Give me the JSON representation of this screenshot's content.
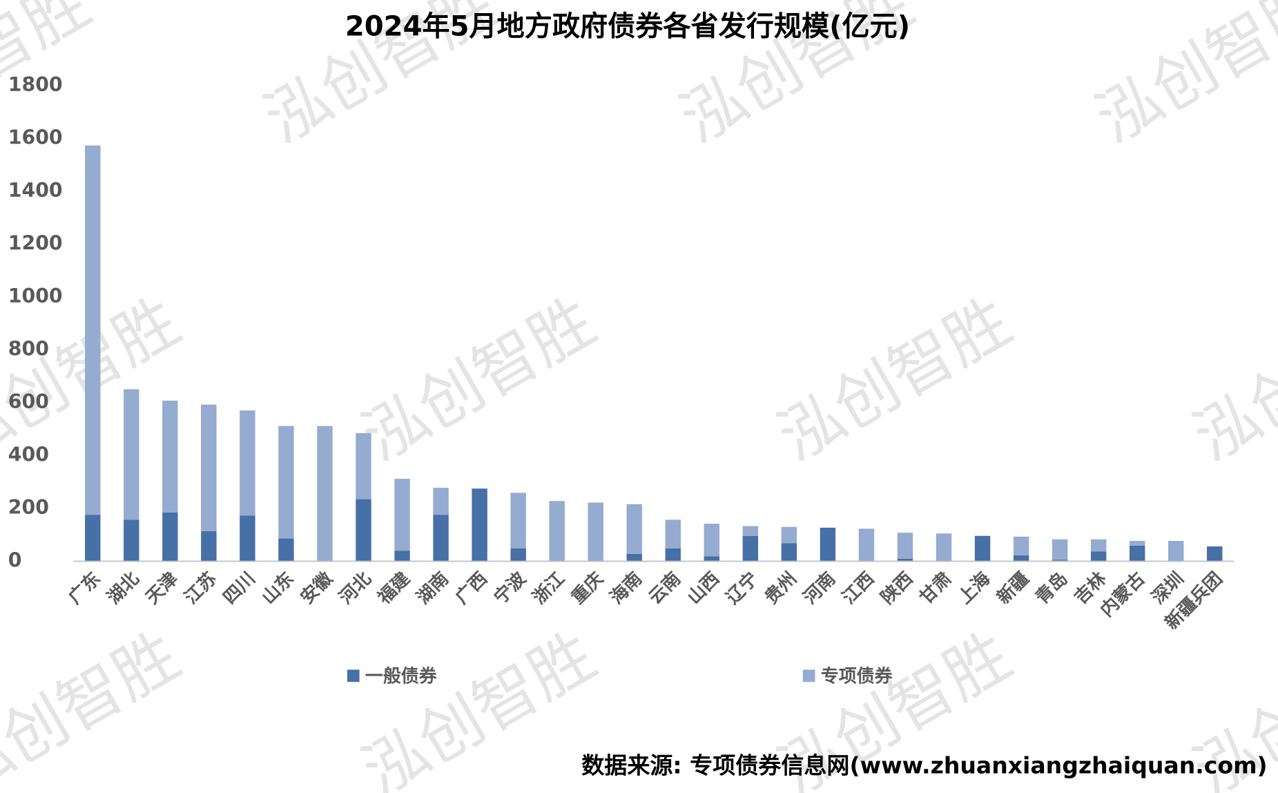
{
  "chart_data": {
    "type": "stacked_bar",
    "title": "2024年5月地方政府债券各省发行规模(亿元)",
    "source": "数据来源: 专项债券信息网(www.zhuanxiangzhaiquan.com)",
    "watermark": "泓创智胜",
    "categories": [
      "广东",
      "湖北",
      "天津",
      "江苏",
      "四川",
      "山东",
      "安徽",
      "河北",
      "福建",
      "湖南",
      "广西",
      "宁波",
      "浙江",
      "重庆",
      "海南",
      "云南",
      "山西",
      "辽宁",
      "贵州",
      "河南",
      "江西",
      "陕西",
      "甘肃",
      "上海",
      "新疆",
      "青岛",
      "吉林",
      "内蒙古",
      "深圳",
      "新疆兵团"
    ],
    "series": [
      {
        "name": "一般债券",
        "color": "#4670a6",
        "values": [
          176,
          157,
          185,
          114,
          173,
          86,
          0,
          235,
          40,
          176,
          275,
          49,
          0,
          0,
          28,
          49,
          19,
          96,
          68,
          127,
          0,
          9,
          0,
          96,
          22,
          6,
          37,
          59,
          0,
          56
        ]
      },
      {
        "name": "专项债券",
        "color": "#95abd0",
        "values": [
          1398,
          494,
          423,
          479,
          398,
          426,
          512,
          250,
          272,
          102,
          0,
          210,
          228,
          222,
          188,
          108,
          123,
          37,
          62,
          0,
          123,
          99,
          105,
          0,
          71,
          77,
          46,
          18,
          77,
          0
        ]
      }
    ],
    "ylim": [
      0,
      1800
    ],
    "yticks": [
      0,
      200,
      400,
      600,
      800,
      1000,
      1200,
      1400,
      1600,
      1800
    ],
    "grid": false
  }
}
